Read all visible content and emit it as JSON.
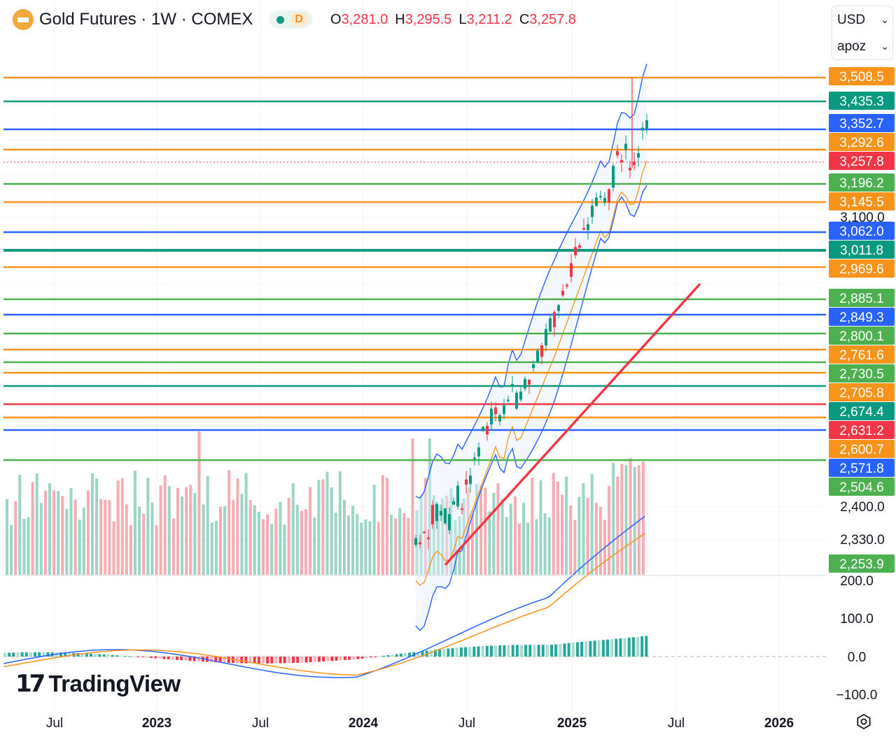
{
  "header": {
    "title": "Gold Futures · 1W · COMEX",
    "status_label": "D",
    "ohlc": [
      {
        "key": "O",
        "value": "3,281.0"
      },
      {
        "key": "H",
        "value": "3,295.5"
      },
      {
        "key": "L",
        "value": "3,211.2"
      },
      {
        "key": "C",
        "value": "3,257.8"
      }
    ]
  },
  "controls": {
    "currency": "USD",
    "account": "apoz"
  },
  "brand": {
    "name": "TradingView"
  },
  "colors": {
    "up": "#089981",
    "down": "#f23645",
    "orange": "#f7931a",
    "blue": "#2962ff",
    "green": "#4caf50",
    "teal": "#089981",
    "red": "#f23645"
  },
  "chart_data": {
    "type": "candlestick",
    "price_axis": {
      "ticks": [
        "3,100.0",
        "2,400.0",
        "2,330.0"
      ],
      "last_price": "3,257.8"
    },
    "level_lines": [
      {
        "value": "3,508.5",
        "color": "orange"
      },
      {
        "value": "3,435.3",
        "color": "teal"
      },
      {
        "value": "3,352.7",
        "color": "blue"
      },
      {
        "value": "3,292.6",
        "color": "orange"
      },
      {
        "value": "3,257.8",
        "color": "red"
      },
      {
        "value": "3,196.2",
        "color": "green"
      },
      {
        "value": "3,145.5",
        "color": "orange"
      },
      {
        "value": "3,062.0",
        "color": "blue"
      },
      {
        "value": "3,011.8",
        "color": "teal"
      },
      {
        "value": "2,969.6",
        "color": "orange"
      },
      {
        "value": "2,885.1",
        "color": "green"
      },
      {
        "value": "2,849.3",
        "color": "blue"
      },
      {
        "value": "2,800.1",
        "color": "green"
      },
      {
        "value": "2,761.6",
        "color": "orange"
      },
      {
        "value": "2,730.5",
        "color": "green"
      },
      {
        "value": "2,705.8",
        "color": "orange"
      },
      {
        "value": "2,674.4",
        "color": "teal"
      },
      {
        "value": "2,631.2",
        "color": "red"
      },
      {
        "value": "2,600.7",
        "color": "orange"
      },
      {
        "value": "2,571.8",
        "color": "blue"
      },
      {
        "value": "2,504.6",
        "color": "green"
      },
      {
        "value": "2,253.9",
        "color": "green"
      }
    ],
    "indicator_axis": {
      "ticks": [
        "200.0",
        "100.0",
        "0.0",
        "−100.0"
      ]
    },
    "time_axis": {
      "ticks": [
        "Jul",
        "2023",
        "Jul",
        "2024",
        "Jul",
        "2025",
        "Jul",
        "2026"
      ]
    },
    "seed": 20240501
  }
}
